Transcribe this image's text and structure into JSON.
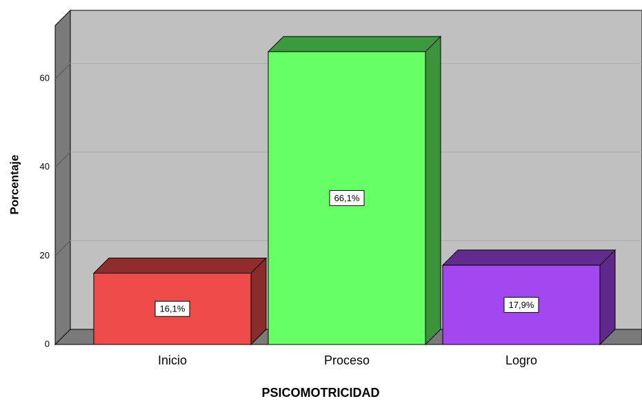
{
  "chart_data": {
    "type": "bar3d",
    "x_label": "PSICOMOTRICIDAD",
    "y_label": "Porcentaje",
    "categories": [
      "Inicio",
      "Proceso",
      "Logro"
    ],
    "values": [
      16.1,
      66.1,
      17.9
    ],
    "value_labels": [
      "16,1%",
      "66,1%",
      "17,9%"
    ],
    "colors": [
      "#ef4b4b",
      "#66ff66",
      "#a347f0"
    ],
    "ylim": [
      0,
      72
    ],
    "yticks": [
      0,
      20,
      40,
      60
    ],
    "grid": true
  }
}
